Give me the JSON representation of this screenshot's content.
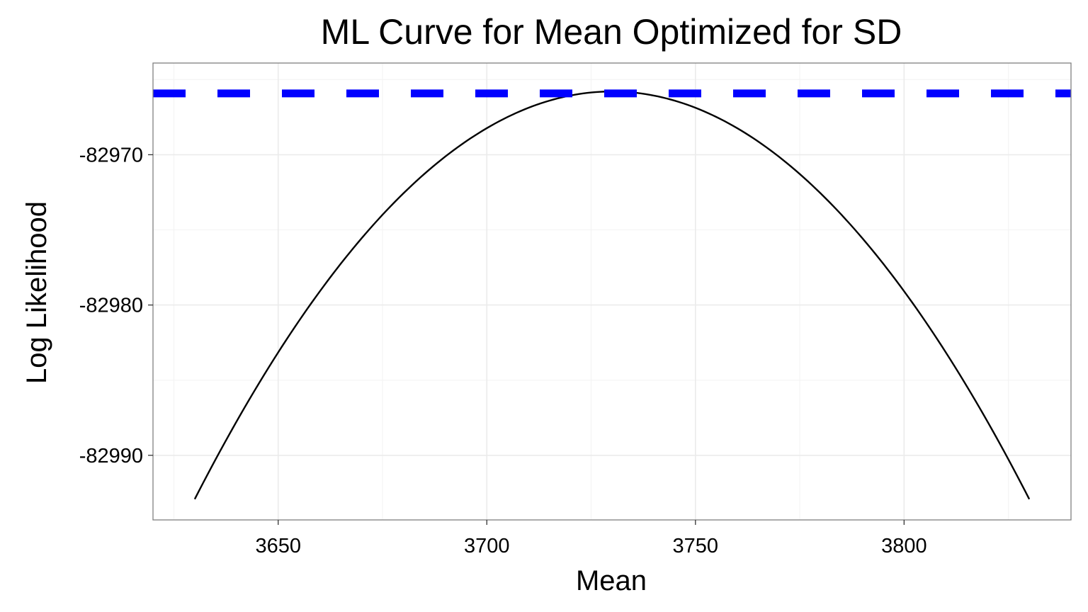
{
  "chart_data": {
    "type": "line",
    "title": "ML Curve for Mean Optimized for SD",
    "xlabel": "Mean",
    "ylabel": "Log Likelihood",
    "xlim": [
      3620,
      3840
    ],
    "ylim": [
      -82994.3,
      -82963.9
    ],
    "x_ticks": [
      3650,
      3700,
      3750,
      3800
    ],
    "x_tick_labels": [
      "3650",
      "3700",
      "3750",
      "3800"
    ],
    "y_ticks": [
      -82970,
      -82980,
      -82990
    ],
    "y_tick_labels": [
      "-82970",
      "-82980",
      "-82990"
    ],
    "grid": true,
    "series": [
      {
        "kind": "curve",
        "color": "#000000",
        "x": [
          3630,
          3640,
          3650,
          3660,
          3670,
          3680,
          3690,
          3700,
          3710,
          3720,
          3730,
          3740,
          3750,
          3760,
          3770,
          3780,
          3790,
          3800,
          3810,
          3820,
          3830
        ],
        "y": [
          -82993.0,
          -82987.8,
          -82983.1,
          -82979.0,
          -82975.5,
          -82972.5,
          -82970.1,
          -82968.3,
          -82966.9,
          -82966.1,
          -82965.9,
          -82966.1,
          -82966.9,
          -82968.3,
          -82970.1,
          -82972.5,
          -82975.5,
          -82979.0,
          -82983.1,
          -82987.8,
          -82993.0
        ]
      },
      {
        "kind": "hline",
        "color": "#0000ff",
        "dashed": true,
        "y": -82965.92
      }
    ]
  }
}
